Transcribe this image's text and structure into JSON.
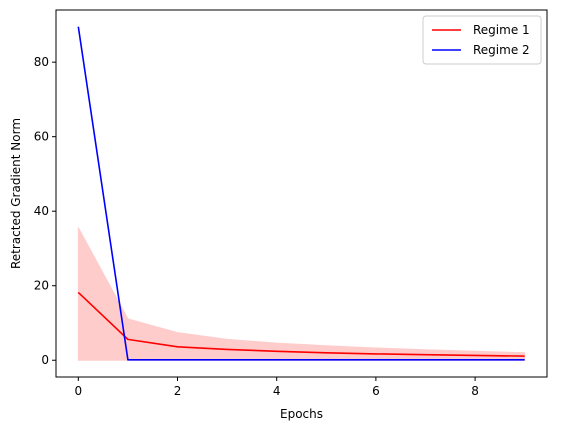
{
  "chart_data": {
    "type": "line",
    "title": "",
    "xlabel": "Epochs",
    "ylabel": "Retracted Gradient Norm",
    "xlim": [
      -0.45,
      9.45
    ],
    "ylim": [
      -4.5,
      94
    ],
    "xticks": [
      0,
      2,
      4,
      6,
      8
    ],
    "yticks": [
      0,
      20,
      40,
      60,
      80
    ],
    "grid": false,
    "legend": "top-right",
    "x": [
      0,
      1,
      2,
      3,
      4,
      5,
      6,
      7,
      8,
      9
    ],
    "series": [
      {
        "name": "Regime 1",
        "color": "#ff0000",
        "values": [
          18.2,
          5.6,
          3.6,
          2.9,
          2.4,
          2.0,
          1.7,
          1.5,
          1.3,
          1.1
        ],
        "band_upper": [
          35.6,
          11.1,
          7.4,
          5.6,
          4.6,
          3.9,
          3.3,
          2.8,
          2.4,
          2.0
        ],
        "band_lower": [
          0,
          0,
          0,
          0,
          0,
          0,
          0,
          0,
          0,
          0
        ],
        "band_color": "#ffcccc"
      },
      {
        "name": "Regime 2",
        "color": "#0000ff",
        "values": [
          89.5,
          0.1,
          0.1,
          0.1,
          0.1,
          0.1,
          0.1,
          0.1,
          0.1,
          0.1
        ]
      }
    ]
  }
}
